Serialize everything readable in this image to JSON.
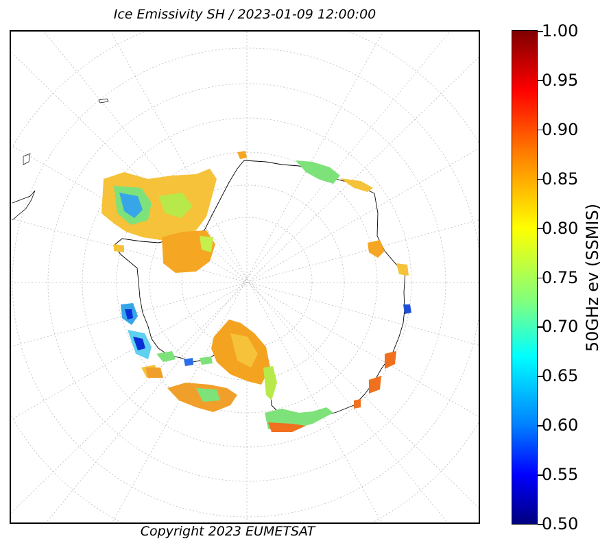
{
  "title": "Ice Emissivity SH / 2023-01-09 12:00:00",
  "footer": "Copyright 2023 EUMETSAT",
  "colorbar": {
    "label": "50GHz ev (SSMIS)",
    "ticks": [
      "1.00",
      "0.95",
      "0.90",
      "0.85",
      "0.80",
      "0.75",
      "0.70",
      "0.65",
      "0.60",
      "0.55",
      "0.50"
    ],
    "min": 0.5,
    "max": 1.0,
    "colormap": "jet",
    "colors": [
      "#7f0000",
      "#ff0000",
      "#ff7f00",
      "#ffff00",
      "#7fff7f",
      "#00ffff",
      "#007fff",
      "#0000ff",
      "#00007f"
    ]
  },
  "map": {
    "projection": "south polar stereographic",
    "graticule": "dashed gray",
    "coastline_color": "#000000"
  }
}
